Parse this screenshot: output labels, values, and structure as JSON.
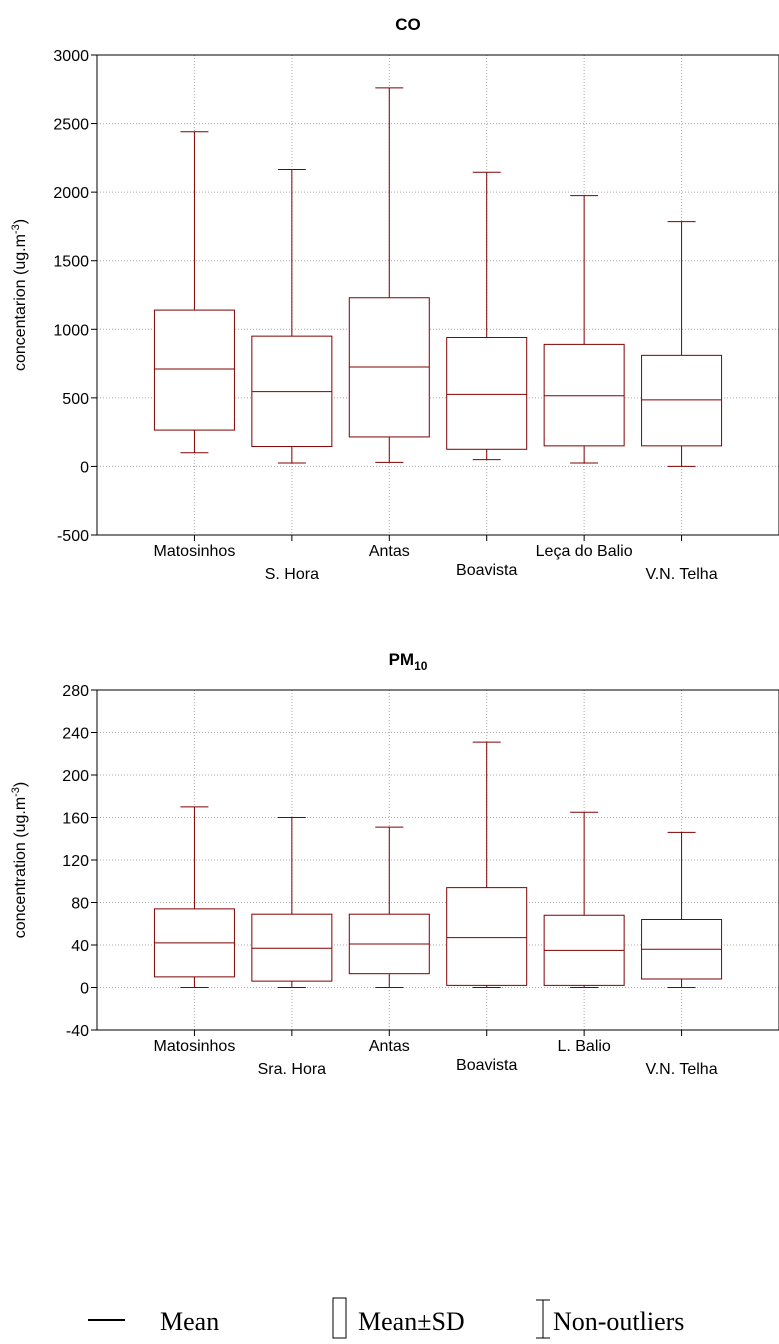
{
  "chart_data": [
    {
      "type": "box",
      "title": "CO",
      "ylabel": "concentarion (ug.m",
      "ylabel_sup": "-3",
      "ylabel_end": ")",
      "categories": [
        "Matosinhos",
        "S. Hora",
        "Antas",
        "Boavista",
        "Leça do Balio",
        "V.N. Telha"
      ],
      "mean": [
        710,
        545,
        725,
        525,
        515,
        485
      ],
      "box_low": [
        265,
        145,
        215,
        125,
        150,
        150
      ],
      "box_high": [
        1140,
        950,
        1230,
        940,
        890,
        810
      ],
      "whisker_low": [
        100,
        25,
        30,
        50,
        25,
        0
      ],
      "whisker_high": [
        2440,
        2165,
        2760,
        2145,
        1975,
        1785
      ],
      "color": "#800000",
      "ylim": [
        -500,
        3000
      ],
      "yticks": [
        -500,
        0,
        500,
        1000,
        1500,
        2000,
        2500,
        3000
      ],
      "grid": true
    },
    {
      "type": "box",
      "title": "PM",
      "title_sub": "10",
      "ylabel": "concentration (ug.m",
      "ylabel_sup": "-3",
      "ylabel_end": ")",
      "categories": [
        "Matosinhos",
        "Sra. Hora",
        "Antas",
        "Boavista",
        "L. Balio",
        "V.N. Telha"
      ],
      "mean": [
        42,
        37,
        41,
        47,
        35,
        36
      ],
      "box_low": [
        10,
        6,
        13,
        2,
        2,
        8
      ],
      "box_high": [
        74,
        69,
        69,
        94,
        68,
        64
      ],
      "whisker_low": [
        0,
        0,
        0,
        0,
        0,
        0
      ],
      "whisker_high": [
        170,
        160,
        151,
        231,
        165,
        146
      ],
      "color": "#800000",
      "ylim": [
        -40,
        280
      ],
      "yticks": [
        -40,
        0,
        40,
        80,
        120,
        160,
        200,
        240,
        280
      ],
      "grid": true
    }
  ],
  "legend": [
    "Mean",
    "Mean±SD",
    "Non-outliers"
  ]
}
